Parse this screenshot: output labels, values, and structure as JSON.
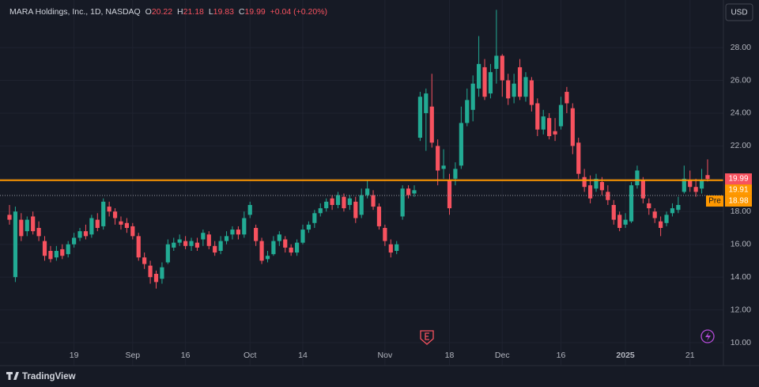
{
  "header": {
    "symbol": "MARA Holdings, Inc., 1D, NASDAQ",
    "open_label": "O",
    "open": 20.22,
    "high_label": "H",
    "high": 21.18,
    "low_label": "L",
    "low": 19.83,
    "close_label": "C",
    "close": 19.99,
    "change": "+0.04 (+0.20%)"
  },
  "currency": "USD",
  "footer": {
    "brand": "TradingView"
  },
  "chart_data": {
    "type": "candlestick",
    "up_color": "#22ab94",
    "down_color": "#f7525f",
    "grid": true,
    "ylim": [
      8.94,
      30.9
    ],
    "yticks": [
      {
        "value": 10,
        "label": "10.00"
      },
      {
        "value": 12,
        "label": "12.00"
      },
      {
        "value": 14,
        "label": "14.00"
      },
      {
        "value": 16,
        "label": "16.00"
      },
      {
        "value": 18,
        "label": "18.00"
      },
      {
        "value": 20,
        "label": "20.00"
      },
      {
        "value": 22,
        "label": "22.00"
      },
      {
        "value": 24,
        "label": "24.00"
      },
      {
        "value": 26,
        "label": "26.00"
      },
      {
        "value": 28,
        "label": "28.00"
      }
    ],
    "xticks": [
      {
        "value": 11,
        "label": "19"
      },
      {
        "value": 21,
        "label": "Sep"
      },
      {
        "value": 30,
        "label": "16"
      },
      {
        "value": 41,
        "label": "Oct"
      },
      {
        "value": 50,
        "label": "14"
      },
      {
        "value": 64,
        "label": "Nov"
      },
      {
        "value": 75,
        "label": "18"
      },
      {
        "value": 84,
        "label": "Dec"
      },
      {
        "value": 94,
        "label": "16"
      },
      {
        "value": 105,
        "label": "2025",
        "bold": true
      },
      {
        "value": 116,
        "label": "21"
      }
    ],
    "price_lines": [
      {
        "value": 19.99,
        "color": "#f7525f",
        "style": "none"
      },
      {
        "value": 19.91,
        "color": "#ff9800",
        "style": "solid"
      },
      {
        "name": "Pre",
        "value": 18.98,
        "color": "#ff9800",
        "style": "dotted"
      }
    ],
    "candles": [
      [
        17.8,
        18.4,
        17.2,
        17.5
      ],
      [
        14.0,
        18.3,
        13.7,
        18.0
      ],
      [
        17.5,
        17.9,
        16.2,
        16.5
      ],
      [
        16.8,
        17.7,
        16.5,
        17.5
      ],
      [
        17.7,
        18.0,
        16.6,
        16.8
      ],
      [
        17.0,
        17.4,
        16.2,
        16.5
      ],
      [
        16.2,
        16.5,
        15.0,
        15.3
      ],
      [
        15.6,
        15.9,
        14.9,
        15.1
      ],
      [
        15.2,
        15.9,
        15.0,
        15.6
      ],
      [
        15.7,
        16.0,
        15.1,
        15.3
      ],
      [
        15.4,
        16.2,
        15.2,
        16.0
      ],
      [
        16.0,
        16.7,
        15.8,
        16.4
      ],
      [
        16.4,
        17.0,
        16.2,
        16.8
      ],
      [
        16.8,
        17.2,
        16.3,
        16.5
      ],
      [
        16.6,
        17.8,
        16.4,
        17.6
      ],
      [
        17.5,
        17.9,
        16.8,
        17.0
      ],
      [
        17.1,
        18.8,
        16.9,
        18.6
      ],
      [
        18.3,
        18.6,
        17.7,
        18.0
      ],
      [
        18.0,
        18.2,
        17.2,
        17.6
      ],
      [
        17.4,
        17.7,
        16.9,
        17.2
      ],
      [
        17.3,
        17.6,
        16.7,
        17.0
      ],
      [
        17.1,
        17.3,
        16.3,
        16.5
      ],
      [
        16.5,
        16.7,
        15.0,
        15.2
      ],
      [
        15.2,
        15.5,
        14.5,
        14.8
      ],
      [
        14.7,
        15.0,
        13.6,
        14.0
      ],
      [
        14.2,
        14.4,
        13.3,
        13.7
      ],
      [
        13.9,
        14.9,
        13.6,
        14.6
      ],
      [
        14.9,
        16.3,
        14.8,
        16.0
      ],
      [
        15.8,
        16.4,
        15.6,
        16.1
      ],
      [
        16.1,
        16.6,
        15.9,
        16.3
      ],
      [
        16.2,
        16.5,
        15.7,
        15.9
      ],
      [
        15.9,
        16.4,
        15.6,
        16.2
      ],
      [
        16.1,
        16.4,
        15.6,
        15.8
      ],
      [
        16.3,
        16.9,
        15.9,
        16.7
      ],
      [
        16.6,
        16.8,
        15.7,
        15.9
      ],
      [
        15.9,
        16.2,
        15.3,
        15.5
      ],
      [
        15.6,
        16.5,
        15.4,
        16.2
      ],
      [
        16.2,
        16.8,
        16.0,
        16.5
      ],
      [
        16.6,
        17.1,
        16.3,
        16.9
      ],
      [
        16.9,
        17.1,
        16.3,
        16.6
      ],
      [
        16.6,
        18.0,
        16.4,
        17.6
      ],
      [
        17.8,
        18.6,
        17.6,
        18.4
      ],
      [
        17.0,
        17.2,
        15.9,
        16.2
      ],
      [
        16.2,
        16.4,
        14.8,
        15.0
      ],
      [
        15.1,
        15.6,
        14.9,
        15.3
      ],
      [
        15.4,
        16.5,
        15.3,
        16.2
      ],
      [
        16.2,
        16.8,
        15.9,
        16.6
      ],
      [
        16.3,
        16.5,
        15.5,
        15.8
      ],
      [
        15.8,
        16.0,
        15.3,
        15.5
      ],
      [
        15.5,
        16.3,
        15.3,
        16.1
      ],
      [
        16.1,
        17.2,
        16.0,
        16.9
      ],
      [
        16.9,
        17.4,
        16.7,
        17.2
      ],
      [
        17.3,
        18.1,
        17.0,
        17.9
      ],
      [
        17.9,
        18.5,
        17.7,
        18.2
      ],
      [
        18.2,
        18.8,
        18.0,
        18.6
      ],
      [
        18.8,
        19.0,
        18.1,
        18.4
      ],
      [
        18.4,
        19.2,
        18.2,
        19.0
      ],
      [
        18.9,
        19.1,
        18.0,
        18.2
      ],
      [
        18.4,
        19.0,
        18.1,
        18.8
      ],
      [
        18.6,
        18.9,
        17.3,
        17.6
      ],
      [
        17.8,
        19.4,
        17.6,
        19.0
      ],
      [
        19.0,
        19.9,
        18.8,
        19.4
      ],
      [
        19.0,
        19.3,
        18.1,
        18.3
      ],
      [
        18.3,
        18.5,
        16.9,
        17.1
      ],
      [
        17.0,
        17.2,
        15.9,
        16.2
      ],
      [
        16.0,
        16.3,
        15.2,
        15.5
      ],
      [
        15.6,
        16.2,
        15.4,
        16.0
      ],
      [
        17.7,
        19.6,
        17.5,
        19.4
      ],
      [
        19.4,
        19.6,
        18.8,
        19.0
      ],
      [
        19.1,
        19.6,
        18.9,
        19.3
      ],
      [
        22.5,
        25.3,
        22.3,
        25.0
      ],
      [
        24.0,
        25.5,
        21.7,
        25.2
      ],
      [
        24.4,
        26.4,
        21.9,
        22.2
      ],
      [
        22.0,
        22.4,
        19.6,
        20.5
      ],
      [
        20.6,
        21.8,
        20.0,
        20.8
      ],
      [
        19.9,
        20.3,
        17.8,
        18.2
      ],
      [
        20.0,
        21.0,
        19.6,
        20.6
      ],
      [
        20.8,
        24.4,
        20.6,
        23.4
      ],
      [
        23.4,
        25.5,
        23.2,
        24.8
      ],
      [
        24.2,
        26.3,
        23.5,
        25.8
      ],
      [
        25.5,
        28.7,
        25.0,
        27.0
      ],
      [
        26.8,
        27.3,
        24.8,
        25.0
      ],
      [
        25.2,
        27.0,
        24.9,
        26.5
      ],
      [
        26.7,
        30.3,
        25.8,
        27.5
      ],
      [
        27.5,
        27.6,
        25.0,
        26.0
      ],
      [
        26.0,
        26.4,
        24.5,
        24.9
      ],
      [
        25.0,
        26.4,
        24.6,
        25.8
      ],
      [
        26.8,
        27.3,
        24.8,
        25.0
      ],
      [
        25.0,
        26.5,
        24.7,
        26.2
      ],
      [
        26.0,
        26.2,
        24.1,
        24.5
      ],
      [
        24.6,
        24.9,
        22.6,
        23.0
      ],
      [
        23.0,
        24.2,
        22.7,
        23.8
      ],
      [
        23.7,
        24.0,
        22.4,
        22.6
      ],
      [
        22.9,
        23.7,
        22.3,
        22.7
      ],
      [
        23.2,
        25.0,
        23.0,
        24.5
      ],
      [
        25.3,
        25.6,
        24.0,
        24.6
      ],
      [
        24.3,
        24.6,
        21.5,
        22.0
      ],
      [
        22.2,
        22.5,
        20.0,
        20.3
      ],
      [
        20.1,
        20.6,
        19.2,
        19.5
      ],
      [
        19.6,
        20.2,
        18.5,
        18.8
      ],
      [
        19.4,
        20.3,
        19.2,
        20.0
      ],
      [
        19.8,
        20.1,
        19.0,
        19.3
      ],
      [
        19.2,
        19.6,
        18.4,
        18.7
      ],
      [
        18.4,
        18.7,
        17.2,
        17.5
      ],
      [
        17.8,
        18.0,
        16.8,
        17.0
      ],
      [
        17.2,
        17.9,
        17.0,
        17.5
      ],
      [
        17.4,
        19.8,
        17.3,
        19.6
      ],
      [
        19.6,
        20.8,
        19.4,
        20.5
      ],
      [
        19.9,
        20.1,
        18.5,
        18.8
      ],
      [
        18.5,
        18.8,
        17.8,
        18.2
      ],
      [
        18.0,
        18.2,
        17.3,
        17.6
      ],
      [
        17.4,
        17.7,
        16.5,
        17.0
      ],
      [
        17.3,
        18.0,
        17.1,
        17.8
      ],
      [
        17.9,
        18.5,
        17.7,
        18.2
      ],
      [
        18.1,
        18.9,
        17.9,
        18.4
      ],
      [
        19.2,
        20.8,
        19.1,
        20.0
      ],
      [
        19.9,
        20.5,
        19.2,
        19.5
      ],
      [
        19.5,
        20.0,
        18.9,
        19.2
      ],
      [
        19.4,
        20.6,
        19.1,
        19.9
      ],
      [
        20.22,
        21.18,
        19.83,
        19.99
      ]
    ]
  }
}
